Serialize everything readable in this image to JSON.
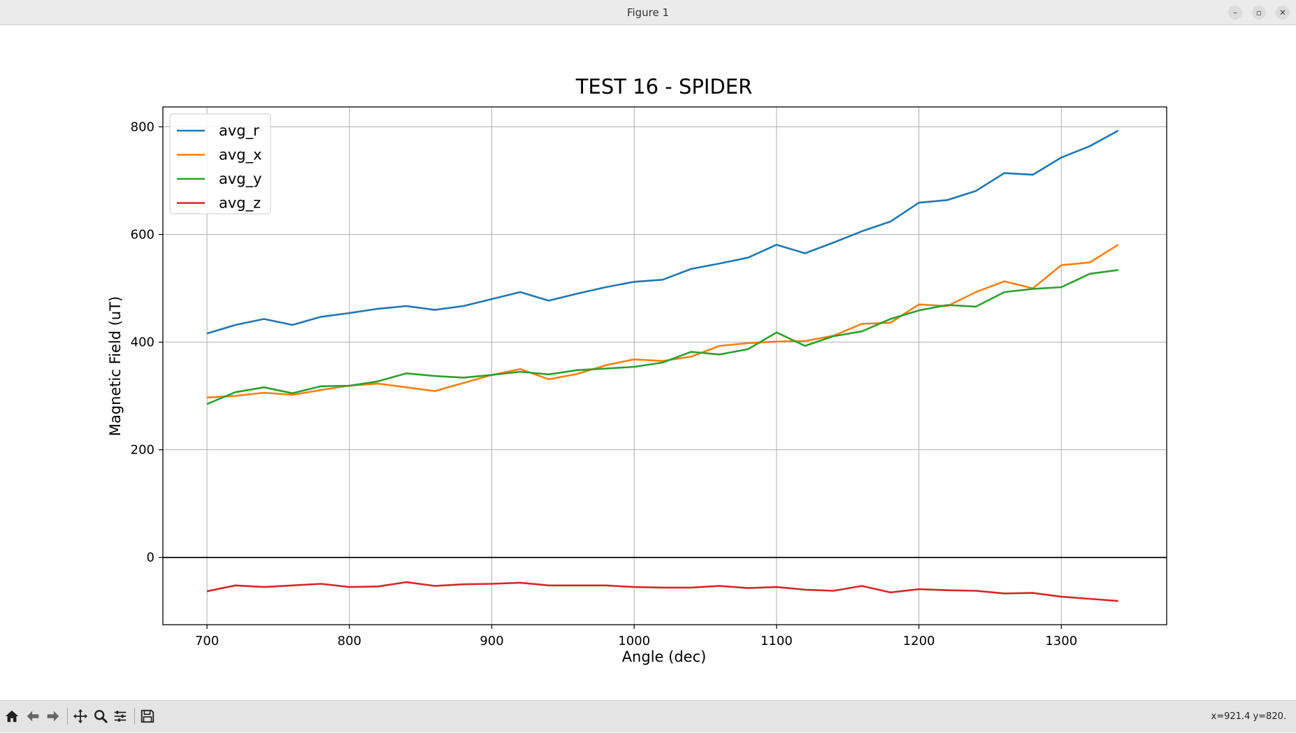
{
  "window": {
    "title": "Figure 1"
  },
  "toolbar": {
    "tools": [
      "home-icon",
      "back-arrow-icon",
      "forward-arrow-icon",
      "pan-icon",
      "zoom-icon",
      "configure-icon",
      "save-icon"
    ],
    "coords": "x=921.4 y=820."
  },
  "chart_data": {
    "type": "line",
    "title": "TEST 16 - SPIDER",
    "xlabel": "Angle (dec)",
    "ylabel": "Magnetic Field (uT)",
    "xlim": [
      669,
      1374
    ],
    "ylim": [
      -125,
      837
    ],
    "xticks": [
      700,
      800,
      900,
      1000,
      1100,
      1200,
      1300
    ],
    "yticks": [
      0,
      200,
      400,
      600,
      800
    ],
    "grid": true,
    "zero_line": true,
    "legend": "top-left",
    "x": [
      700,
      720,
      740,
      760,
      780,
      800,
      820,
      840,
      860,
      880,
      900,
      920,
      940,
      960,
      980,
      1000,
      1020,
      1040,
      1060,
      1080,
      1100,
      1120,
      1140,
      1160,
      1180,
      1200,
      1220,
      1240,
      1260,
      1280,
      1300,
      1320,
      1340
    ],
    "series": [
      {
        "name": "avg_r",
        "color": "#1f77b4",
        "values": [
          416,
          432,
          443,
          432,
          447,
          454,
          462,
          467,
          460,
          467,
          480,
          493,
          477,
          490,
          502,
          512,
          516,
          536,
          546,
          557,
          581,
          565,
          585,
          606,
          624,
          659,
          664,
          681,
          714,
          711,
          743,
          764,
          793
        ]
      },
      {
        "name": "avg_x",
        "color": "#ff7f0e",
        "values": [
          297,
          300,
          306,
          302,
          311,
          319,
          323,
          316,
          309,
          324,
          339,
          350,
          331,
          341,
          357,
          368,
          365,
          373,
          393,
          398,
          401,
          402,
          412,
          434,
          436,
          470,
          467,
          493,
          513,
          500,
          543,
          548,
          581
        ]
      },
      {
        "name": "avg_y",
        "color": "#2ca02c",
        "values": [
          285,
          307,
          316,
          305,
          318,
          319,
          327,
          342,
          337,
          334,
          339,
          345,
          340,
          348,
          351,
          354,
          362,
          382,
          377,
          387,
          418,
          393,
          411,
          420,
          443,
          459,
          469,
          466,
          493,
          499,
          502,
          527,
          534
        ]
      },
      {
        "name": "avg_z",
        "color": "#d62728",
        "values": [
          -63,
          -52,
          -55,
          -52,
          -49,
          -55,
          -54,
          -46,
          -53,
          -50,
          -49,
          -47,
          -52,
          -52,
          -52,
          -55,
          -56,
          -56,
          -53,
          -57,
          -55,
          -60,
          -62,
          -53,
          -65,
          -59,
          -61,
          -62,
          -67,
          -66,
          -73,
          -77,
          -81
        ]
      }
    ]
  }
}
